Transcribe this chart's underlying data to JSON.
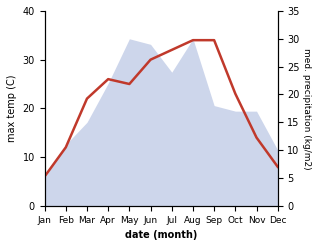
{
  "months": [
    "Jan",
    "Feb",
    "Mar",
    "Apr",
    "May",
    "Jun",
    "Jul",
    "Aug",
    "Sep",
    "Oct",
    "Nov",
    "Dec"
  ],
  "temperature": [
    6,
    12,
    22,
    26,
    25,
    30,
    32,
    34,
    34,
    23,
    14,
    8
  ],
  "precipitation": [
    5,
    11,
    15,
    22,
    30,
    29,
    24,
    30,
    18,
    17,
    17,
    10
  ],
  "temp_color": "#c0392b",
  "precip_color_fill": "#c5cfe8",
  "temp_ylim": [
    0,
    40
  ],
  "precip_ylim": [
    0,
    35
  ],
  "temp_yticks": [
    0,
    10,
    20,
    30,
    40
  ],
  "precip_yticks": [
    0,
    5,
    10,
    15,
    20,
    25,
    30,
    35
  ],
  "xlabel": "date (month)",
  "ylabel_left": "max temp (C)",
  "ylabel_right": "med. precipitation (kg/m2)"
}
